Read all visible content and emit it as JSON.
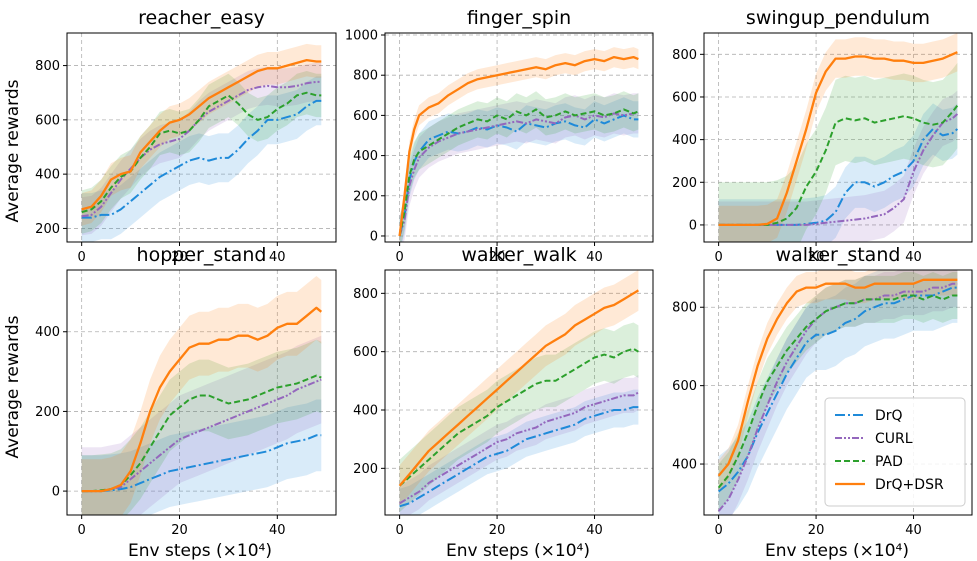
{
  "figure": {
    "ylabel": "Average rewards",
    "xlabel": "Env steps (×10⁴)",
    "legend": [
      "DrQ",
      "CURL",
      "PAD",
      "DrQ+DSR"
    ],
    "colors": {
      "DrQ": "#1f8ad9",
      "CURL": "#9467bd",
      "PAD": "#2ca02c",
      "DrQ+DSR": "#ff7f0e"
    }
  },
  "chart_data": [
    {
      "type": "line",
      "title": "reacher_easy",
      "xlim": [
        -3,
        52
      ],
      "ylim": [
        150,
        920
      ],
      "xticks": [
        0,
        20,
        40
      ],
      "yticks": [
        200,
        400,
        600,
        800
      ],
      "x": [
        0,
        2,
        4,
        6,
        8,
        10,
        12,
        14,
        16,
        18,
        20,
        22,
        24,
        26,
        28,
        30,
        32,
        34,
        36,
        38,
        40,
        42,
        44,
        46,
        48,
        49
      ],
      "series": [
        {
          "name": "DrQ",
          "values": [
            240,
            240,
            250,
            250,
            270,
            300,
            330,
            360,
            390,
            410,
            430,
            450,
            460,
            450,
            460,
            460,
            490,
            530,
            560,
            600,
            600,
            610,
            620,
            650,
            670,
            670
          ],
          "band": 90
        },
        {
          "name": "CURL",
          "values": [
            245,
            250,
            280,
            330,
            380,
            420,
            460,
            490,
            510,
            520,
            530,
            560,
            600,
            630,
            650,
            670,
            690,
            710,
            720,
            725,
            720,
            720,
            725,
            735,
            740,
            740
          ],
          "band": 70
        },
        {
          "name": "PAD",
          "values": [
            260,
            270,
            300,
            350,
            390,
            410,
            460,
            500,
            550,
            560,
            550,
            560,
            600,
            650,
            670,
            690,
            660,
            620,
            600,
            610,
            640,
            660,
            690,
            700,
            690,
            690
          ],
          "band": 80
        },
        {
          "name": "DrQ+DSR",
          "values": [
            270,
            280,
            320,
            380,
            400,
            410,
            480,
            520,
            560,
            590,
            600,
            620,
            650,
            680,
            700,
            720,
            740,
            760,
            780,
            790,
            790,
            800,
            810,
            820,
            815,
            815
          ],
          "band": 60
        }
      ]
    },
    {
      "type": "line",
      "title": "finger_spin",
      "xlim": [
        -3,
        52
      ],
      "ylim": [
        -30,
        1010
      ],
      "xticks": [
        0,
        20,
        40
      ],
      "yticks": [
        0,
        200,
        400,
        600,
        800,
        1000
      ],
      "x": [
        0,
        1,
        2,
        3,
        4,
        6,
        8,
        10,
        12,
        14,
        16,
        18,
        20,
        22,
        24,
        26,
        28,
        30,
        32,
        34,
        36,
        38,
        40,
        42,
        44,
        46,
        48,
        49
      ],
      "series": [
        {
          "name": "DrQ",
          "values": [
            0,
            100,
            280,
            370,
            420,
            480,
            500,
            520,
            510,
            520,
            540,
            530,
            550,
            540,
            520,
            560,
            550,
            540,
            560,
            570,
            550,
            540,
            580,
            560,
            580,
            600,
            580,
            580
          ],
          "band": 90
        },
        {
          "name": "CURL",
          "values": [
            0,
            80,
            250,
            330,
            390,
            440,
            470,
            490,
            510,
            520,
            530,
            540,
            550,
            560,
            570,
            560,
            580,
            570,
            560,
            590,
            600,
            580,
            600,
            590,
            610,
            600,
            610,
            610
          ],
          "band": 100
        },
        {
          "name": "PAD",
          "values": [
            0,
            120,
            300,
            380,
            420,
            450,
            480,
            510,
            540,
            560,
            580,
            570,
            600,
            580,
            620,
            600,
            630,
            590,
            600,
            620,
            600,
            610,
            620,
            600,
            610,
            630,
            610,
            620
          ],
          "band": 90
        },
        {
          "name": "DrQ+DSR",
          "values": [
            0,
            200,
            420,
            530,
            600,
            640,
            660,
            700,
            730,
            760,
            780,
            790,
            800,
            810,
            820,
            830,
            840,
            830,
            850,
            860,
            850,
            870,
            880,
            870,
            890,
            880,
            890,
            880
          ],
          "band": 50
        }
      ]
    },
    {
      "type": "line",
      "title": "swingup_pendulum",
      "xlim": [
        -3,
        52
      ],
      "ylim": [
        -80,
        900
      ],
      "xticks": [
        0,
        20,
        40
      ],
      "yticks": [
        0,
        200,
        400,
        600,
        800
      ],
      "x": [
        0,
        2,
        4,
        6,
        8,
        10,
        12,
        14,
        16,
        18,
        20,
        22,
        24,
        26,
        28,
        30,
        32,
        34,
        36,
        38,
        40,
        42,
        44,
        46,
        48,
        49
      ],
      "series": [
        {
          "name": "DrQ",
          "values": [
            0,
            0,
            0,
            0,
            0,
            0,
            0,
            0,
            0,
            5,
            10,
            20,
            60,
            150,
            200,
            200,
            180,
            200,
            230,
            250,
            300,
            400,
            450,
            420,
            430,
            450
          ],
          "band": 120
        },
        {
          "name": "CURL",
          "values": [
            0,
            0,
            0,
            0,
            0,
            0,
            0,
            0,
            0,
            0,
            5,
            10,
            15,
            20,
            25,
            30,
            40,
            50,
            80,
            120,
            250,
            350,
            420,
            480,
            500,
            520
          ],
          "band": 110
        },
        {
          "name": "PAD",
          "values": [
            0,
            0,
            0,
            0,
            0,
            0,
            10,
            30,
            80,
            180,
            250,
            350,
            480,
            500,
            490,
            500,
            480,
            490,
            500,
            510,
            500,
            480,
            470,
            480,
            530,
            560
          ],
          "band": 200
        },
        {
          "name": "DrQ+DSR",
          "values": [
            0,
            0,
            0,
            0,
            0,
            5,
            30,
            150,
            300,
            450,
            620,
            720,
            780,
            780,
            790,
            790,
            780,
            780,
            770,
            770,
            760,
            760,
            770,
            780,
            800,
            810
          ],
          "band": 90
        }
      ]
    },
    {
      "type": "line",
      "title": "hopper_stand",
      "xlim": [
        -3,
        52
      ],
      "ylim": [
        -60,
        555
      ],
      "xticks": [
        0,
        20,
        40
      ],
      "yticks": [
        0,
        200,
        400
      ],
      "x": [
        0,
        2,
        4,
        6,
        8,
        10,
        12,
        14,
        16,
        18,
        20,
        22,
        24,
        26,
        28,
        30,
        32,
        34,
        36,
        38,
        40,
        42,
        44,
        46,
        48,
        49
      ],
      "series": [
        {
          "name": "DrQ",
          "values": [
            0,
            0,
            0,
            2,
            5,
            10,
            20,
            30,
            40,
            50,
            55,
            60,
            65,
            70,
            75,
            80,
            85,
            90,
            95,
            100,
            110,
            120,
            125,
            130,
            140,
            140
          ],
          "band": 90
        },
        {
          "name": "CURL",
          "values": [
            0,
            0,
            0,
            5,
            10,
            30,
            50,
            70,
            90,
            110,
            130,
            140,
            150,
            160,
            170,
            180,
            190,
            200,
            210,
            220,
            230,
            240,
            255,
            265,
            275,
            280
          ],
          "band": 110
        },
        {
          "name": "PAD",
          "values": [
            0,
            0,
            2,
            5,
            15,
            40,
            70,
            110,
            150,
            190,
            210,
            230,
            240,
            240,
            230,
            220,
            225,
            230,
            240,
            250,
            260,
            265,
            270,
            280,
            290,
            285
          ],
          "band": 90
        },
        {
          "name": "DrQ+DSR",
          "values": [
            0,
            0,
            0,
            5,
            15,
            50,
            120,
            200,
            260,
            300,
            330,
            360,
            370,
            370,
            380,
            380,
            390,
            390,
            380,
            390,
            410,
            420,
            420,
            440,
            460,
            450
          ],
          "band": 80
        }
      ]
    },
    {
      "type": "line",
      "title": "walker_walk",
      "xlim": [
        -3,
        52
      ],
      "ylim": [
        40,
        880
      ],
      "xticks": [
        0,
        20,
        40
      ],
      "yticks": [
        200,
        400,
        600,
        800
      ],
      "x": [
        0,
        2,
        4,
        6,
        8,
        10,
        12,
        14,
        16,
        18,
        20,
        22,
        24,
        26,
        28,
        30,
        32,
        34,
        36,
        38,
        40,
        42,
        44,
        46,
        48,
        49
      ],
      "series": [
        {
          "name": "DrQ",
          "values": [
            70,
            80,
            100,
            120,
            140,
            160,
            180,
            200,
            220,
            240,
            250,
            260,
            280,
            300,
            310,
            320,
            330,
            340,
            350,
            370,
            380,
            390,
            400,
            400,
            410,
            410
          ],
          "band": 60
        },
        {
          "name": "CURL",
          "values": [
            80,
            100,
            120,
            150,
            170,
            190,
            210,
            230,
            250,
            270,
            290,
            300,
            320,
            330,
            340,
            360,
            370,
            380,
            390,
            410,
            420,
            430,
            440,
            450,
            450,
            460
          ],
          "band": 60
        },
        {
          "name": "PAD",
          "values": [
            140,
            170,
            200,
            230,
            260,
            290,
            320,
            340,
            360,
            380,
            410,
            430,
            450,
            470,
            490,
            500,
            500,
            520,
            540,
            560,
            580,
            590,
            580,
            600,
            610,
            600
          ],
          "band": 90
        },
        {
          "name": "DrQ+DSR",
          "values": [
            140,
            180,
            220,
            260,
            290,
            320,
            350,
            380,
            410,
            440,
            470,
            500,
            530,
            560,
            590,
            620,
            640,
            660,
            690,
            710,
            730,
            750,
            760,
            780,
            800,
            810
          ],
          "band": 70
        }
      ]
    },
    {
      "type": "line",
      "title": "walker_stand",
      "xlim": [
        -3,
        52
      ],
      "ylim": [
        270,
        895
      ],
      "xticks": [
        0,
        20,
        40
      ],
      "yticks": [
        400,
        600,
        800
      ],
      "x": [
        0,
        2,
        4,
        6,
        8,
        10,
        12,
        14,
        16,
        18,
        20,
        22,
        24,
        26,
        28,
        30,
        32,
        34,
        36,
        38,
        40,
        42,
        44,
        46,
        48,
        49
      ],
      "series": [
        {
          "name": "DrQ",
          "values": [
            330,
            350,
            380,
            420,
            480,
            530,
            580,
            630,
            670,
            710,
            730,
            730,
            740,
            760,
            770,
            790,
            800,
            810,
            810,
            820,
            830,
            830,
            830,
            840,
            850,
            850
          ],
          "band": 90
        },
        {
          "name": "CURL",
          "values": [
            280,
            310,
            360,
            420,
            490,
            550,
            610,
            660,
            700,
            740,
            770,
            790,
            800,
            810,
            810,
            820,
            820,
            830,
            830,
            840,
            840,
            840,
            850,
            850,
            860,
            860
          ],
          "band": 60
        },
        {
          "name": "PAD",
          "values": [
            340,
            370,
            420,
            480,
            550,
            610,
            650,
            690,
            720,
            750,
            770,
            790,
            800,
            810,
            810,
            820,
            820,
            820,
            820,
            830,
            830,
            820,
            830,
            820,
            830,
            830
          ],
          "band": 60
        },
        {
          "name": "DrQ+DSR",
          "values": [
            370,
            400,
            460,
            560,
            650,
            720,
            770,
            810,
            840,
            850,
            850,
            860,
            860,
            860,
            850,
            850,
            860,
            860,
            860,
            860,
            860,
            870,
            870,
            870,
            870,
            870
          ],
          "band": 40
        }
      ]
    }
  ]
}
